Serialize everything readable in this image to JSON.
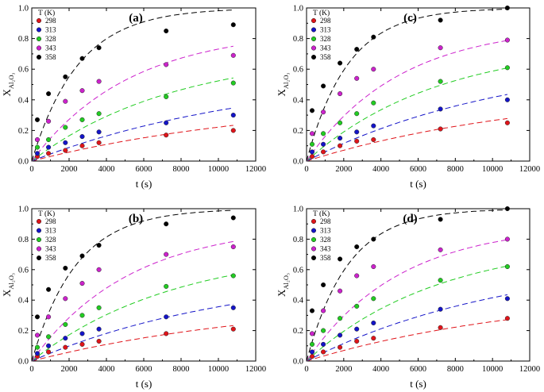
{
  "figure": {
    "legend_title": "T (K)",
    "x_axis_label": "t (s)",
    "y_axis_label_main": "X",
    "y_axis_label_sub": "Al₂O₃",
    "series_colors": [
      "#e0141a",
      "#1414c8",
      "#22cc22",
      "#cc22cc",
      "#000000"
    ],
    "temperatures": [
      "298",
      "313",
      "328",
      "343",
      "358"
    ]
  },
  "chart_data": [
    {
      "type": "scatter",
      "panel": "(a)",
      "xlabel": "t (s)",
      "ylabel": "XAl2O3",
      "xlim": [
        0,
        12000
      ],
      "ylim": [
        0,
        1.0
      ],
      "xticks": [
        "0",
        "2000",
        "4000",
        "6000",
        "8000",
        "10000",
        "12000"
      ],
      "yticks": [
        "0.0",
        "0.2",
        "0.4",
        "0.6",
        "0.8",
        "1.0"
      ],
      "x": [
        300,
        900,
        1800,
        2700,
        3600,
        7200,
        10800
      ],
      "series": [
        {
          "name": "298",
          "values": [
            0.03,
            0.05,
            0.07,
            0.1,
            0.12,
            0.17,
            0.2
          ],
          "fit_plateau": 0.42,
          "fit_k": 7.5e-05
        },
        {
          "name": "313",
          "values": [
            0.05,
            0.09,
            0.12,
            0.16,
            0.19,
            0.25,
            0.3
          ],
          "fit_plateau": 0.6,
          "fit_k": 8e-05
        },
        {
          "name": "328",
          "values": [
            0.09,
            0.14,
            0.22,
            0.27,
            0.31,
            0.42,
            0.51
          ],
          "fit_plateau": 0.72,
          "fit_k": 0.00013
        },
        {
          "name": "343",
          "values": [
            0.14,
            0.26,
            0.39,
            0.46,
            0.52,
            0.63,
            0.69
          ],
          "fit_plateau": 0.86,
          "fit_k": 0.00019
        },
        {
          "name": "358",
          "values": [
            0.27,
            0.44,
            0.55,
            0.67,
            0.74,
            0.85,
            0.89
          ],
          "fit_plateau": 1.0,
          "fit_k": 0.0004
        }
      ]
    },
    {
      "type": "scatter",
      "panel": "(c)",
      "xlabel": "t (s)",
      "ylabel": "XAl2O3",
      "xlim": [
        0,
        12000
      ],
      "ylim": [
        0,
        1.0
      ],
      "xticks": [
        "0",
        "2000",
        "4000",
        "6000",
        "8000",
        "10000",
        "12000"
      ],
      "yticks": [
        "0.0",
        "0.2",
        "0.4",
        "0.6",
        "0.8",
        "1.0"
      ],
      "x": [
        300,
        900,
        1800,
        2700,
        3600,
        7200,
        10800
      ],
      "series": [
        {
          "name": "298",
          "values": [
            0.03,
            0.06,
            0.1,
            0.13,
            0.14,
            0.21,
            0.25
          ],
          "fit_plateau": 0.48,
          "fit_k": 8e-05
        },
        {
          "name": "313",
          "values": [
            0.06,
            0.11,
            0.15,
            0.19,
            0.23,
            0.34,
            0.4
          ],
          "fit_plateau": 0.7,
          "fit_k": 9e-05
        },
        {
          "name": "328",
          "values": [
            0.11,
            0.18,
            0.25,
            0.31,
            0.38,
            0.52,
            0.61
          ],
          "fit_plateau": 0.78,
          "fit_k": 0.00014
        },
        {
          "name": "343",
          "values": [
            0.18,
            0.32,
            0.44,
            0.54,
            0.6,
            0.74,
            0.79
          ],
          "fit_plateau": 0.89,
          "fit_k": 0.0002
        },
        {
          "name": "358",
          "values": [
            0.33,
            0.49,
            0.64,
            0.73,
            0.81,
            0.92,
            1.0
          ],
          "fit_plateau": 1.0,
          "fit_k": 0.00045
        }
      ]
    },
    {
      "type": "scatter",
      "panel": "(b)",
      "xlabel": "t (s)",
      "ylabel": "XAl2O3",
      "xlim": [
        0,
        12000
      ],
      "ylim": [
        0,
        1.0
      ],
      "xticks": [
        "0",
        "2000",
        "4000",
        "6000",
        "8000",
        "10000",
        "12000"
      ],
      "yticks": [
        "0.0",
        "0.2",
        "0.4",
        "0.6",
        "0.8",
        "1.0"
      ],
      "x": [
        300,
        900,
        1800,
        2700,
        3600,
        7200,
        10800
      ],
      "series": [
        {
          "name": "298",
          "values": [
            0.03,
            0.06,
            0.09,
            0.11,
            0.13,
            0.18,
            0.21
          ],
          "fit_plateau": 0.42,
          "fit_k": 7.5e-05
        },
        {
          "name": "313",
          "values": [
            0.05,
            0.1,
            0.15,
            0.18,
            0.21,
            0.29,
            0.35
          ],
          "fit_plateau": 0.6,
          "fit_k": 9e-05
        },
        {
          "name": "328",
          "values": [
            0.09,
            0.16,
            0.24,
            0.3,
            0.35,
            0.49,
            0.56
          ],
          "fit_plateau": 0.75,
          "fit_k": 0.00013
        },
        {
          "name": "343",
          "values": [
            0.17,
            0.29,
            0.41,
            0.51,
            0.6,
            0.7,
            0.75
          ],
          "fit_plateau": 0.9,
          "fit_k": 0.00019
        },
        {
          "name": "358",
          "values": [
            0.29,
            0.47,
            0.61,
            0.69,
            0.76,
            0.9,
            0.94
          ],
          "fit_plateau": 1.0,
          "fit_k": 0.00042
        }
      ]
    },
    {
      "type": "scatter",
      "panel": "(d)",
      "xlabel": "t (s)",
      "ylabel": "XAl2O3",
      "xlim": [
        0,
        12000
      ],
      "ylim": [
        0,
        1.0
      ],
      "xticks": [
        "0",
        "2000",
        "4000",
        "6000",
        "8000",
        "10000",
        "12000"
      ],
      "yticks": [
        "0.0",
        "0.2",
        "0.4",
        "0.6",
        "0.8",
        "1.0"
      ],
      "x": [
        300,
        900,
        1800,
        2700,
        3600,
        7200,
        10800
      ],
      "series": [
        {
          "name": "298",
          "values": [
            0.03,
            0.06,
            0.09,
            0.13,
            0.15,
            0.22,
            0.28
          ],
          "fit_plateau": 0.47,
          "fit_k": 8e-05
        },
        {
          "name": "313",
          "values": [
            0.06,
            0.11,
            0.17,
            0.21,
            0.25,
            0.34,
            0.41
          ],
          "fit_plateau": 0.7,
          "fit_k": 9e-05
        },
        {
          "name": "328",
          "values": [
            0.11,
            0.2,
            0.28,
            0.36,
            0.41,
            0.53,
            0.62
          ],
          "fit_plateau": 0.8,
          "fit_k": 0.00014
        },
        {
          "name": "343",
          "values": [
            0.18,
            0.33,
            0.46,
            0.56,
            0.62,
            0.73,
            0.8
          ],
          "fit_plateau": 0.9,
          "fit_k": 0.0002
        },
        {
          "name": "358",
          "values": [
            0.33,
            0.5,
            0.67,
            0.75,
            0.8,
            0.93,
            1.0
          ],
          "fit_plateau": 1.0,
          "fit_k": 0.00045
        }
      ]
    }
  ]
}
